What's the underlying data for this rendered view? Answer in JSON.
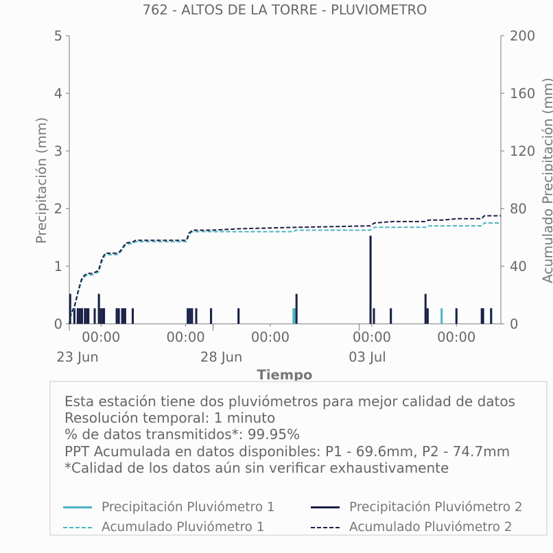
{
  "chart_data": {
    "type": "line",
    "title": "762 - ALTOS DE LA TORRE - PLUVIOMETRO",
    "xlabel": "Tiempo",
    "ylabel": "Precipitación (mm)",
    "y2label": "Acumulado Precipitación (mm)",
    "ylim": [
      0,
      5
    ],
    "y2lim": [
      0,
      200
    ],
    "yticks": [
      "0",
      "1",
      "2",
      "3",
      "4",
      "5"
    ],
    "y2ticks": [
      "0",
      "40",
      "80",
      "120",
      "160",
      "200"
    ],
    "xlim": [
      22.75,
      32.95
    ],
    "x_unit": "day of June 2022 (fractional)",
    "xticks": [
      {
        "x": 23.5,
        "label": "00:00"
      },
      {
        "x": 25.5,
        "label": "00:00"
      },
      {
        "x": 27.5,
        "label": "00:00"
      },
      {
        "x": 29.9,
        "label": "00:00"
      },
      {
        "x": 31.9,
        "label": "00:00"
      }
    ],
    "xticks_major": [
      {
        "x": 22.75,
        "label": "23 Jun"
      },
      {
        "x": 26.15,
        "label": "28 Jun"
      },
      {
        "x": 29.6,
        "label": "03 Jul"
      }
    ],
    "grid": false,
    "series": [
      {
        "name": "Precipitación Pluviómetro 1",
        "kind": "bar",
        "axis": "left",
        "color": "#4db3c2",
        "x": [
          22.77,
          22.87,
          22.95,
          23.0,
          23.05,
          23.12,
          23.17,
          23.2,
          23.35,
          23.45,
          23.5,
          23.55,
          23.57,
          23.87,
          23.92,
          24.0,
          24.05,
          24.05,
          24.25,
          25.55,
          25.6,
          25.65,
          25.75,
          26.1,
          26.75,
          28.05,
          28.07,
          29.87,
          29.95,
          30.35,
          31.17,
          31.22,
          31.55,
          31.9,
          32.5,
          32.53,
          32.72
        ],
        "values": [
          0.52,
          0.27,
          0.27,
          0.27,
          0.27,
          0.27,
          0.27,
          0.27,
          0.27,
          0.52,
          0.27,
          0.27,
          0.27,
          0.27,
          0.27,
          0.27,
          0.27,
          0.27,
          0.27,
          0.27,
          0.27,
          0.27,
          0.27,
          0.27,
          0.27,
          0.27,
          0.27,
          1.5,
          0.27,
          0.27,
          0.27,
          0.27,
          0.27,
          0.27,
          0.27,
          0.27,
          0.27
        ]
      },
      {
        "name": "Precipitación Pluviómetro 2",
        "kind": "bar",
        "axis": "left",
        "color": "#1b1f44",
        "x": [
          22.77,
          22.87,
          22.95,
          23.0,
          23.05,
          23.12,
          23.17,
          23.2,
          23.35,
          23.45,
          23.5,
          23.55,
          23.57,
          23.87,
          23.92,
          24.0,
          24.05,
          24.07,
          24.25,
          25.55,
          25.6,
          25.65,
          25.75,
          26.1,
          26.75,
          28.12,
          29.87,
          29.95,
          30.35,
          31.17,
          31.22,
          31.9,
          32.5,
          32.53,
          32.72
        ],
        "values": [
          0.52,
          0.27,
          0.27,
          0.27,
          0.27,
          0.27,
          0.27,
          0.27,
          0.27,
          0.52,
          0.27,
          0.27,
          0.27,
          0.27,
          0.27,
          0.27,
          0.27,
          0.27,
          0.27,
          0.27,
          0.27,
          0.27,
          0.27,
          0.27,
          0.27,
          0.52,
          1.53,
          0.27,
          0.27,
          0.52,
          0.27,
          0.27,
          0.27,
          0.27,
          0.27
        ]
      },
      {
        "name": "Acumulado Pluviómetro 1",
        "kind": "step",
        "axis": "right",
        "color": "#4db3c2",
        "x": [
          22.75,
          22.78,
          22.88,
          22.96,
          23.04,
          23.12,
          23.18,
          23.3,
          23.44,
          23.52,
          23.6,
          23.86,
          23.94,
          24.04,
          24.08,
          24.26,
          24.32,
          25.52,
          25.58,
          25.66,
          25.78,
          26.12,
          26.78,
          28.06,
          28.1,
          29.86,
          29.96,
          30.4,
          31.18,
          31.24,
          31.56,
          31.92,
          32.5,
          32.56,
          32.95
        ],
        "values": [
          0,
          5,
          12,
          22,
          30,
          33,
          34,
          34,
          36,
          43,
          48,
          48,
          49,
          53,
          55,
          56,
          57,
          57,
          62,
          64,
          64,
          64,
          64,
          64,
          65,
          65,
          67,
          67,
          67,
          68,
          68,
          68,
          68,
          70,
          70
        ]
      },
      {
        "name": "Acumulado Pluviómetro 2",
        "kind": "step",
        "axis": "right",
        "color": "#1b1f44",
        "x": [
          22.75,
          22.78,
          22.88,
          22.96,
          23.04,
          23.12,
          23.18,
          23.3,
          23.44,
          23.52,
          23.6,
          23.86,
          23.94,
          24.04,
          24.08,
          24.26,
          24.32,
          25.52,
          25.58,
          25.66,
          25.78,
          26.12,
          26.78,
          28.12,
          28.16,
          29.86,
          29.96,
          30.4,
          31.18,
          31.24,
          31.56,
          31.92,
          32.5,
          32.56,
          32.95
        ],
        "values": [
          0,
          6,
          13,
          23,
          31,
          34,
          35,
          35,
          37,
          45,
          49,
          49,
          50,
          54,
          56,
          57,
          58,
          58,
          63,
          65,
          65,
          65,
          66,
          67,
          67,
          68,
          70,
          71,
          71,
          72,
          72,
          73,
          73,
          75,
          75
        ]
      }
    ],
    "legend_placement": "bottom, inside info box"
  },
  "info": {
    "lines": [
      "Esta estación tiene dos pluviómetros para mejor calidad de datos",
      "Resolución temporal: 1 minuto",
      "% de datos transmitidos*: 99.95%",
      "PPT Acumulada en datos disponibles: P1 - 69.6mm, P2 - 74.7mm",
      "*Calidad de los datos aún sin verificar exhaustivamente"
    ]
  },
  "legend": {
    "items": [
      {
        "label": "Precipitación Pluviómetro 1",
        "color": "#4db3c2",
        "style": "solid"
      },
      {
        "label": "Precipitación Pluviómetro 2",
        "color": "#1b1f44",
        "style": "solid"
      },
      {
        "label": "Acumulado Pluviómetro 1",
        "color": "#4db3c2",
        "style": "dashed"
      },
      {
        "label": "Acumulado Pluviómetro 2",
        "color": "#1b1f44",
        "style": "dashed"
      }
    ]
  }
}
